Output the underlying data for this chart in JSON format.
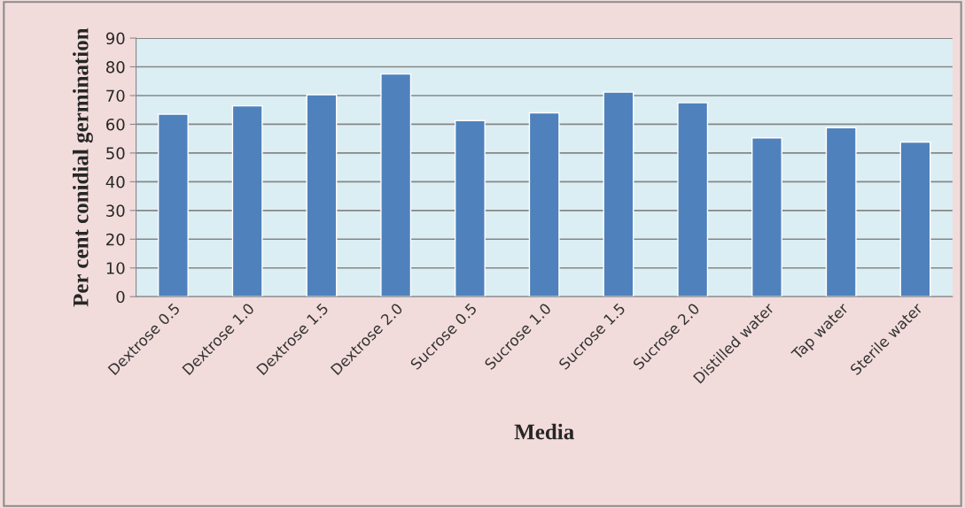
{
  "chart_data": {
    "type": "bar",
    "xlabel": "Media",
    "ylabel": "Per cent conidial germination",
    "categories": [
      "Dextrose 0.5",
      "Dextrose 1.0",
      "Dextrose 1.5",
      "Dextrose 2.0",
      "Sucrose 0.5",
      "Sucrose 1.0",
      "Sucrose 1.5",
      "Sucrose 2.0",
      "Distilled water",
      "Tap water",
      "Sterile water"
    ],
    "values": [
      63.5,
      66.4,
      70.3,
      77.5,
      61.3,
      64.0,
      71.2,
      67.5,
      55.3,
      58.8,
      53.8
    ],
    "color": "#4f81bd",
    "ylim": [
      0,
      90
    ],
    "yticks": [
      0,
      10,
      20,
      30,
      40,
      50,
      60,
      70,
      80,
      90
    ],
    "grid": "y",
    "legend": false
  }
}
